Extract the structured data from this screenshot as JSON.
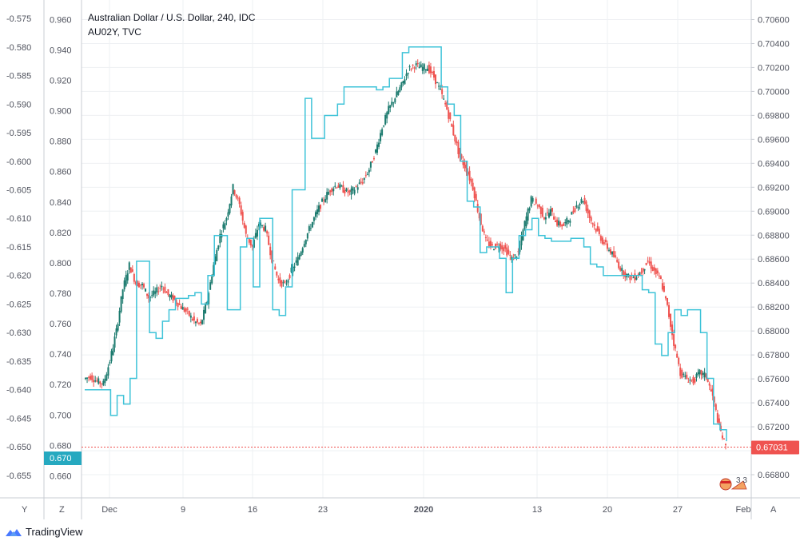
{
  "title": "Australian Dollar / U.S. Dollar, 240, IDC",
  "subtitle": "AU02Y, TVC",
  "brand": "TradingView",
  "colors": {
    "up": "#26a69a",
    "up_dark": "#1b7a6e",
    "down": "#ef5350",
    "overlay": "#3ec3d8",
    "current_price": "#ef5350",
    "left_marker": "#26a9c0",
    "grid": "#eef0f3",
    "axis": "#c9ccd3"
  },
  "buttons": {
    "y": "Y",
    "z": "Z",
    "a": "A"
  },
  "current_price_label": "0.67031",
  "left_marker_label": "0.670",
  "badge_label": "3 3",
  "chart_data": {
    "type": "line",
    "title": "Australian Dollar / U.S. Dollar, 240, IDC",
    "x_ticks": [
      "Dec",
      "9",
      "16",
      "23",
      "2020",
      "13",
      "20",
      "27",
      "Feb"
    ],
    "right_axis": {
      "ticks": [
        "0.70600",
        "0.70400",
        "0.70200",
        "0.70000",
        "0.69800",
        "0.69600",
        "0.69400",
        "0.69200",
        "0.69000",
        "0.68800",
        "0.68600",
        "0.68400",
        "0.68200",
        "0.68000",
        "0.67800",
        "0.67600",
        "0.67400",
        "0.67200",
        "0.67000",
        "0.66800"
      ],
      "range": [
        0.6666,
        0.7071
      ]
    },
    "mid_axis": {
      "ticks": [
        "0.960",
        "0.940",
        "0.920",
        "0.900",
        "0.880",
        "0.860",
        "0.840",
        "0.820",
        "0.800",
        "0.780",
        "0.760",
        "0.740",
        "0.720",
        "0.700",
        "0.680",
        "0.660"
      ],
      "range": [
        0.6497,
        0.9686
      ]
    },
    "left_axis": {
      "ticks": [
        "-0.575",
        "-0.580",
        "-0.585",
        "-0.590",
        "-0.595",
        "-0.600",
        "-0.605",
        "-0.610",
        "-0.615",
        "-0.620",
        "-0.625",
        "-0.630",
        "-0.635",
        "-0.640",
        "-0.645",
        "-0.650",
        "-0.655"
      ],
      "range": [
        -0.6578,
        -0.5729
      ]
    },
    "series": [
      {
        "name": "AUDUSD",
        "axis": "right",
        "kind": "candlestick",
        "points": [
          [
            0,
            0.676
          ],
          [
            1,
            0.6762
          ],
          [
            2,
            0.6758
          ],
          [
            3,
            0.6756
          ],
          [
            4,
            0.6775
          ],
          [
            5,
            0.68
          ],
          [
            6,
            0.6835
          ],
          [
            7,
            0.6855
          ],
          [
            8,
            0.684
          ],
          [
            9,
            0.6838
          ],
          [
            10,
            0.6828
          ],
          [
            11,
            0.6832
          ],
          [
            12,
            0.6838
          ],
          [
            13,
            0.683
          ],
          [
            14,
            0.6826
          ],
          [
            15,
            0.682
          ],
          [
            16,
            0.6815
          ],
          [
            17,
            0.6808
          ],
          [
            18,
            0.6805
          ],
          [
            19,
            0.6825
          ],
          [
            20,
            0.6855
          ],
          [
            21,
            0.688
          ],
          [
            22,
            0.6895
          ],
          [
            23,
            0.692
          ],
          [
            24,
            0.6905
          ],
          [
            25,
            0.688
          ],
          [
            26,
            0.687
          ],
          [
            27,
            0.689
          ],
          [
            28,
            0.6885
          ],
          [
            29,
            0.686
          ],
          [
            30,
            0.6842
          ],
          [
            31,
            0.6838
          ],
          [
            32,
            0.685
          ],
          [
            33,
            0.686
          ],
          [
            34,
            0.6875
          ],
          [
            35,
            0.6888
          ],
          [
            36,
            0.69
          ],
          [
            37,
            0.691
          ],
          [
            38,
            0.6918
          ],
          [
            39,
            0.6922
          ],
          [
            40,
            0.6918
          ],
          [
            41,
            0.6915
          ],
          [
            42,
            0.692
          ],
          [
            43,
            0.6925
          ],
          [
            44,
            0.6935
          ],
          [
            45,
            0.695
          ],
          [
            46,
            0.697
          ],
          [
            47,
            0.6985
          ],
          [
            48,
            0.6995
          ],
          [
            49,
            0.7005
          ],
          [
            50,
            0.7018
          ],
          [
            51,
            0.7022
          ],
          [
            52,
            0.702
          ],
          [
            53,
            0.702
          ],
          [
            54,
            0.7012
          ],
          [
            55,
            0.7
          ],
          [
            56,
            0.6985
          ],
          [
            57,
            0.6965
          ],
          [
            58,
            0.6945
          ],
          [
            59,
            0.6935
          ],
          [
            60,
            0.692
          ],
          [
            61,
            0.6895
          ],
          [
            62,
            0.6875
          ],
          [
            63,
            0.687
          ],
          [
            64,
            0.6872
          ],
          [
            65,
            0.6868
          ],
          [
            66,
            0.686
          ],
          [
            67,
            0.6865
          ],
          [
            68,
            0.689
          ],
          [
            69,
            0.691
          ],
          [
            70,
            0.6905
          ],
          [
            71,
            0.6895
          ],
          [
            72,
            0.69
          ],
          [
            73,
            0.689
          ],
          [
            74,
            0.6888
          ],
          [
            75,
            0.6895
          ],
          [
            76,
            0.6905
          ],
          [
            77,
            0.691
          ],
          [
            78,
            0.6895
          ],
          [
            79,
            0.6885
          ],
          [
            80,
            0.6875
          ],
          [
            81,
            0.6868
          ],
          [
            82,
            0.686
          ],
          [
            83,
            0.685
          ],
          [
            84,
            0.6845
          ],
          [
            85,
            0.6845
          ],
          [
            86,
            0.685
          ],
          [
            87,
            0.6858
          ],
          [
            88,
            0.685
          ],
          [
            89,
            0.6842
          ],
          [
            90,
            0.682
          ],
          [
            91,
            0.679
          ],
          [
            92,
            0.6765
          ],
          [
            93,
            0.676
          ],
          [
            94,
            0.6758
          ],
          [
            95,
            0.6765
          ],
          [
            96,
            0.6762
          ],
          [
            97,
            0.6745
          ],
          [
            98,
            0.672
          ],
          [
            99,
            0.6703
          ]
        ]
      },
      {
        "name": "AU02Y",
        "axis": "left",
        "kind": "line",
        "points": [
          [
            0,
            -0.64
          ],
          [
            1,
            -0.64
          ],
          [
            2,
            -0.64
          ],
          [
            3,
            -0.64
          ],
          [
            4,
            -0.6445
          ],
          [
            5,
            -0.641
          ],
          [
            6,
            -0.6425
          ],
          [
            7,
            -0.638
          ],
          [
            8,
            -0.6175
          ],
          [
            9,
            -0.6175
          ],
          [
            10,
            -0.63
          ],
          [
            11,
            -0.631
          ],
          [
            12,
            -0.628
          ],
          [
            13,
            -0.626
          ],
          [
            14,
            -0.624
          ],
          [
            15,
            -0.624
          ],
          [
            16,
            -0.6235
          ],
          [
            17,
            -0.623
          ],
          [
            18,
            -0.625
          ],
          [
            19,
            -0.62
          ],
          [
            20,
            -0.613
          ],
          [
            21,
            -0.613
          ],
          [
            22,
            -0.626
          ],
          [
            23,
            -0.626
          ],
          [
            24,
            -0.615
          ],
          [
            25,
            -0.6135
          ],
          [
            26,
            -0.622
          ],
          [
            27,
            -0.61
          ],
          [
            28,
            -0.61
          ],
          [
            29,
            -0.626
          ],
          [
            30,
            -0.627
          ],
          [
            31,
            -0.622
          ],
          [
            32,
            -0.605
          ],
          [
            33,
            -0.605
          ],
          [
            34,
            -0.589
          ],
          [
            35,
            -0.596
          ],
          [
            36,
            -0.596
          ],
          [
            37,
            -0.592
          ],
          [
            38,
            -0.592
          ],
          [
            39,
            -0.59
          ],
          [
            40,
            -0.587
          ],
          [
            41,
            -0.587
          ],
          [
            42,
            -0.587
          ],
          [
            43,
            -0.587
          ],
          [
            44,
            -0.587
          ],
          [
            45,
            -0.5875
          ],
          [
            46,
            -0.587
          ],
          [
            47,
            -0.5855
          ],
          [
            48,
            -0.5855
          ],
          [
            49,
            -0.581
          ],
          [
            50,
            -0.58
          ],
          [
            51,
            -0.58
          ],
          [
            52,
            -0.58
          ],
          [
            53,
            -0.58
          ],
          [
            54,
            -0.58
          ],
          [
            55,
            -0.587
          ],
          [
            56,
            -0.59
          ],
          [
            57,
            -0.592
          ],
          [
            58,
            -0.6
          ],
          [
            59,
            -0.607
          ],
          [
            60,
            -0.608
          ],
          [
            61,
            -0.616
          ],
          [
            62,
            -0.615
          ],
          [
            63,
            -0.615
          ],
          [
            64,
            -0.617
          ],
          [
            65,
            -0.623
          ],
          [
            66,
            -0.617
          ],
          [
            67,
            -0.613
          ],
          [
            68,
            -0.612
          ],
          [
            69,
            -0.61
          ],
          [
            70,
            -0.613
          ],
          [
            71,
            -0.6135
          ],
          [
            72,
            -0.614
          ],
          [
            73,
            -0.614
          ],
          [
            74,
            -0.614
          ],
          [
            75,
            -0.6135
          ],
          [
            76,
            -0.6135
          ],
          [
            77,
            -0.615
          ],
          [
            78,
            -0.618
          ],
          [
            79,
            -0.6185
          ],
          [
            80,
            -0.62
          ],
          [
            81,
            -0.62
          ],
          [
            82,
            -0.62
          ],
          [
            83,
            -0.62
          ],
          [
            84,
            -0.62
          ],
          [
            85,
            -0.62
          ],
          [
            86,
            -0.6225
          ],
          [
            87,
            -0.623
          ],
          [
            88,
            -0.632
          ],
          [
            89,
            -0.634
          ],
          [
            90,
            -0.63
          ],
          [
            91,
            -0.626
          ],
          [
            92,
            -0.627
          ],
          [
            93,
            -0.626
          ],
          [
            94,
            -0.626
          ],
          [
            95,
            -0.63
          ],
          [
            96,
            -0.638
          ],
          [
            97,
            -0.646
          ],
          [
            98,
            -0.647
          ],
          [
            99,
            -0.649
          ]
        ]
      }
    ]
  }
}
